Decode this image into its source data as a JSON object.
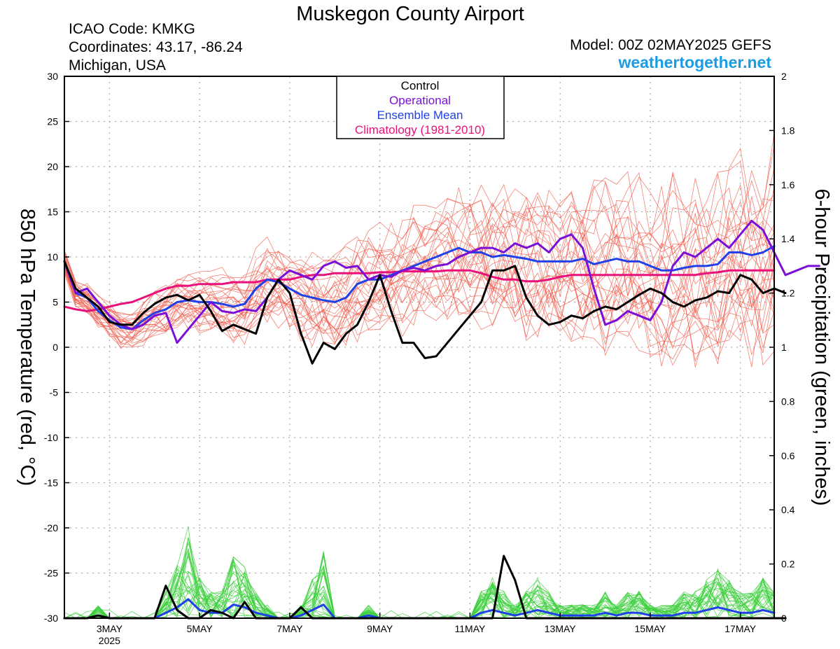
{
  "header": {
    "title": "Muskegon County Airport",
    "icao": "ICAO Code: KMKG",
    "coords": "Coordinates: 43.17, -86.24",
    "region": "Michigan, USA",
    "model": "Model: 00Z 02MAY2025 GEFS",
    "site": "weathertogether.net"
  },
  "colors": {
    "members_temp": "#f05a4a",
    "members_precip": "#3ccf3c",
    "control": "#000000",
    "operational": "#7a10d8",
    "mean": "#2040e8",
    "climatology": "#e8107a",
    "site": "#1a9de6"
  },
  "chart_data": {
    "type": "line",
    "title": "Muskegon County Airport",
    "ylabel": "850 hPa Temperature (red, °C)",
    "y2label": "6-hour Precipitation (green, inches)",
    "ylim": [
      -30,
      30
    ],
    "y2lim": [
      0,
      2
    ],
    "xlim": [
      0,
      63
    ],
    "x_unit": "6-hour steps from 00Z 02MAY2025",
    "yticks": [
      30,
      25,
      20,
      15,
      10,
      5,
      0,
      -5,
      -10,
      -15,
      -20,
      -25,
      -30
    ],
    "y2ticks": [
      "2",
      "1.8",
      "1.6",
      "1.4",
      "1.2",
      "1",
      "0.8",
      "0.6",
      "0.4",
      "0.2",
      "0"
    ],
    "xticks": [
      {
        "x": 4,
        "label": "3MAY",
        "sub": "2025"
      },
      {
        "x": 12,
        "label": "5MAY",
        "sub": ""
      },
      {
        "x": 20,
        "label": "7MAY",
        "sub": ""
      },
      {
        "x": 28,
        "label": "9MAY",
        "sub": ""
      },
      {
        "x": 36,
        "label": "11MAY",
        "sub": ""
      },
      {
        "x": 44,
        "label": "13MAY",
        "sub": ""
      },
      {
        "x": 52,
        "label": "15MAY",
        "sub": ""
      },
      {
        "x": 60,
        "label": "17MAY",
        "sub": ""
      }
    ],
    "grid": true,
    "legend": {
      "position": "top-center",
      "entries": [
        {
          "label": "Control",
          "color": "#000000"
        },
        {
          "label": "Operational",
          "color": "#7a10d8"
        },
        {
          "label": "Ensemble Mean",
          "color": "#2040e8"
        },
        {
          "label": "Climatology (1981-2010)",
          "color": "#e8107a"
        }
      ]
    },
    "series": [
      {
        "name": "Control",
        "axis": "left",
        "values": [
          9.5,
          6.5,
          5.5,
          4.5,
          2.8,
          2.5,
          2.5,
          3.8,
          4.8,
          5.5,
          5.8,
          5.2,
          5.8,
          4.0,
          1.8,
          2.5,
          2.0,
          1.5,
          5.5,
          7.5,
          6.0,
          1.5,
          -1.8,
          0.5,
          -0.2,
          1.5,
          2.5,
          5.0,
          8.0,
          4.0,
          0.5,
          0.5,
          -1.2,
          -1.0,
          0.5,
          2.0,
          3.5,
          5.0,
          8.5,
          8.5,
          9.0,
          5.5,
          3.5,
          2.5,
          2.8,
          3.5,
          3.2,
          4.0,
          4.5,
          4.2,
          5.0,
          5.8,
          6.5,
          6.0,
          5.0,
          4.5,
          5.2,
          5.5,
          6.2,
          6.0,
          8.0,
          7.5,
          6.0,
          6.5,
          6.0
        ]
      },
      {
        "name": "Operational",
        "axis": "left",
        "values": [
          9.5,
          6.0,
          6.5,
          5.0,
          3.5,
          2.5,
          2.0,
          2.5,
          3.5,
          3.8,
          0.5,
          2.0,
          3.5,
          5.0,
          4.0,
          3.8,
          4.2,
          4.0,
          5.5,
          7.5,
          8.5,
          8.0,
          7.5,
          9.0,
          9.5,
          8.8,
          9.0,
          7.5,
          8.0,
          7.8,
          8.5,
          8.8,
          8.5,
          9.0,
          9.2,
          10.0,
          10.5,
          11.0,
          11.0,
          10.5,
          11.5,
          11.0,
          11.5,
          10.5,
          12.0,
          12.5,
          11.0,
          6.5,
          2.5,
          3.0,
          4.0,
          3.5,
          3.0,
          5.0,
          9.0,
          10.5,
          10.0,
          11.0,
          12.0,
          11.0,
          12.5,
          14.0,
          13.0,
          10.5,
          8.0,
          8.5,
          9.0,
          9.0
        ]
      },
      {
        "name": "Ensemble Mean",
        "axis": "left",
        "values": [
          9.5,
          6.0,
          5.5,
          4.0,
          3.0,
          2.2,
          2.0,
          3.0,
          3.8,
          4.2,
          5.0,
          5.2,
          5.0,
          5.0,
          4.8,
          4.5,
          4.8,
          6.5,
          7.5,
          7.2,
          6.5,
          5.8,
          5.5,
          5.2,
          5.0,
          5.5,
          7.0,
          7.5,
          7.5,
          8.0,
          8.5,
          9.0,
          9.5,
          10.0,
          10.5,
          11.0,
          10.5,
          10.5,
          10.0,
          10.2,
          10.0,
          9.8,
          9.5,
          9.5,
          9.5,
          9.5,
          9.8,
          9.2,
          9.5,
          9.8,
          9.5,
          9.5,
          9.0,
          8.5,
          8.5,
          8.8,
          9.0,
          9.0,
          9.2,
          10.5,
          10.5,
          10.2,
          10.5,
          11.2
        ]
      },
      {
        "name": "Climatology (1981-2010)",
        "axis": "left",
        "values": [
          4.5,
          4.2,
          4.0,
          4.2,
          4.5,
          4.8,
          5.0,
          5.5,
          6.0,
          6.5,
          6.8,
          6.8,
          7.0,
          7.0,
          7.0,
          7.2,
          7.2,
          7.2,
          7.5,
          7.5,
          7.5,
          7.8,
          8.0,
          8.0,
          8.2,
          8.2,
          8.2,
          8.2,
          8.3,
          8.3,
          8.4,
          8.4,
          8.4,
          8.4,
          8.5,
          8.5,
          8.5,
          8.2,
          7.8,
          7.5,
          7.5,
          7.3,
          7.3,
          7.5,
          7.8,
          8.0,
          8.0,
          8.0,
          8.0,
          8.0,
          8.0,
          8.0,
          8.0,
          8.0,
          8.0,
          8.0,
          8.0,
          8.2,
          8.3,
          8.5,
          8.5,
          8.5,
          8.5,
          8.5
        ]
      },
      {
        "name": "Control",
        "axis": "right",
        "values": [
          0,
          0,
          0,
          0.01,
          0,
          0,
          0,
          0,
          0,
          0.12,
          0.03,
          0,
          0,
          0.03,
          0.02,
          0,
          0.06,
          0,
          0,
          0,
          0,
          0.04,
          0,
          0,
          0,
          0,
          0,
          0,
          0,
          0,
          0,
          0,
          0,
          0,
          0,
          0,
          0,
          0,
          0,
          0.23,
          0.14,
          0,
          0,
          0,
          0,
          0,
          0,
          0,
          0,
          0,
          0,
          0,
          0,
          0,
          0,
          0,
          0,
          0,
          0,
          0,
          0,
          0,
          0,
          0,
          0
        ]
      },
      {
        "name": "Ensemble Mean",
        "axis": "right",
        "values": [
          0,
          0,
          0,
          0.01,
          0,
          0,
          0,
          0,
          0,
          0.02,
          0.04,
          0.07,
          0.03,
          0.02,
          0.02,
          0.05,
          0.04,
          0.02,
          0.01,
          0,
          0,
          0.01,
          0.03,
          0.05,
          0,
          0,
          0,
          0.01,
          0,
          0,
          0,
          0,
          0,
          0,
          0,
          0,
          0,
          0.02,
          0.03,
          0.02,
          0.01,
          0.02,
          0.03,
          0.02,
          0.01,
          0.01,
          0.01,
          0.01,
          0.02,
          0.01,
          0.02,
          0.02,
          0.01,
          0.01,
          0.01,
          0.02,
          0.02,
          0.03,
          0.04,
          0.03,
          0.02,
          0.02,
          0.03,
          0.02
        ]
      }
    ]
  }
}
